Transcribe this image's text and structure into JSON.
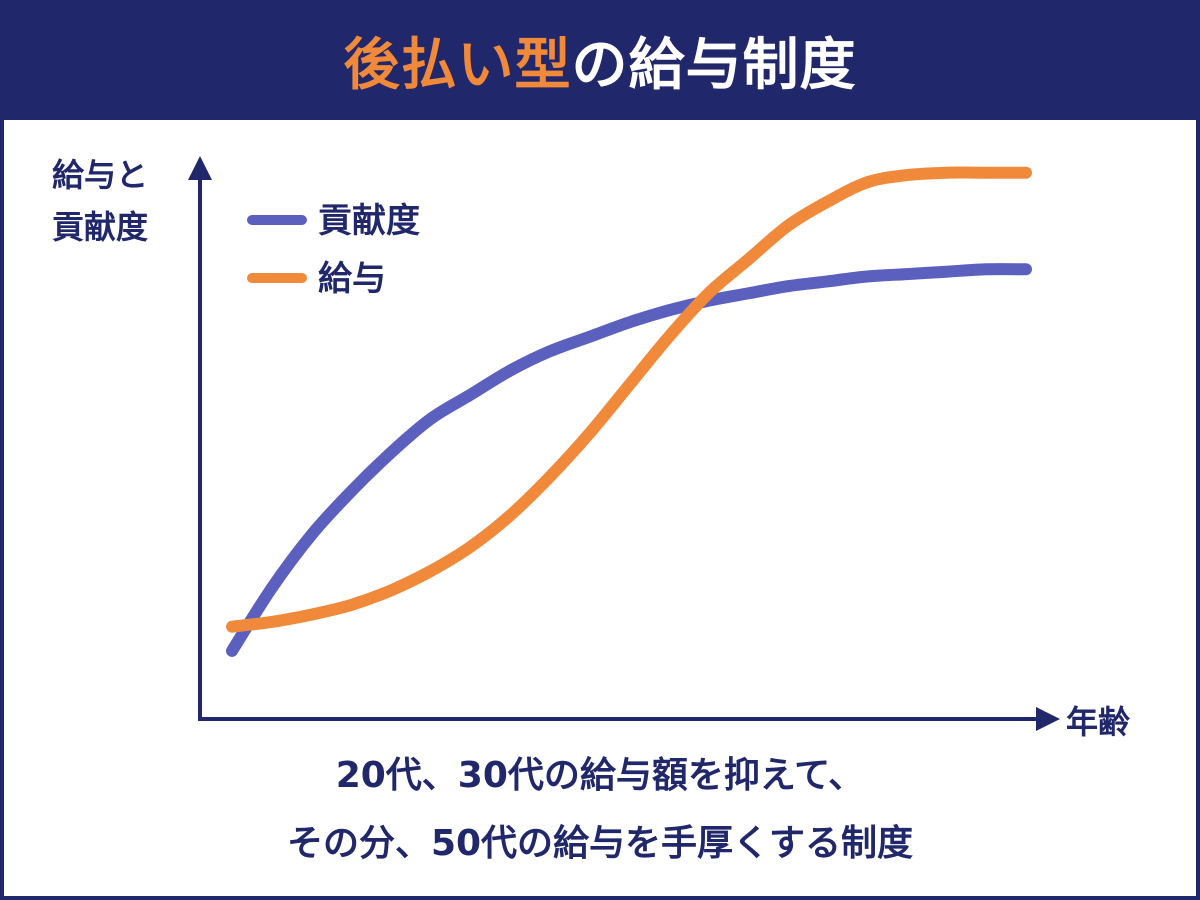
{
  "title": {
    "accent": "後払い型",
    "rest": "の給与制度",
    "accent_color": "#f0893a"
  },
  "colors": {
    "navy": "#21276b",
    "contribution": "#5b60bf",
    "salary": "#f0893a"
  },
  "chart_data": {
    "type": "line",
    "ylabel_lines": [
      "給与と",
      "貢献度"
    ],
    "xlabel": "年齢",
    "ylim": [
      0,
      100
    ],
    "xlim": [
      0,
      100
    ],
    "grid": false,
    "ticks": false,
    "legend_position": "top-left",
    "series": [
      {
        "name": "貢献度",
        "color": "#5b60bf",
        "x": [
          0,
          5,
          10,
          15,
          20,
          25,
          30,
          35,
          40,
          45,
          50,
          55,
          60,
          65,
          70,
          75,
          80,
          85,
          90,
          95,
          100
        ],
        "y": [
          5,
          18,
          29,
          38,
          46,
          53,
          58,
          63,
          67,
          70,
          73,
          75.5,
          77.5,
          79,
          80.5,
          81.5,
          82.5,
          83,
          83.5,
          84,
          84
        ]
      },
      {
        "name": "給与",
        "color": "#f0893a",
        "x": [
          0,
          5,
          10,
          15,
          20,
          25,
          30,
          35,
          40,
          45,
          50,
          55,
          60,
          65,
          70,
          75,
          80,
          85,
          90,
          95,
          100
        ],
        "y": [
          10,
          11,
          12.5,
          14.5,
          17.5,
          21.5,
          26.5,
          33,
          41,
          50,
          60,
          70,
          79,
          86,
          93,
          98,
          102,
          103.5,
          104,
          104,
          104
        ]
      }
    ]
  },
  "caption": {
    "line1": "20代、30代の給与額を抑えて、",
    "line2": "その分、50代の給与を手厚くする制度"
  }
}
